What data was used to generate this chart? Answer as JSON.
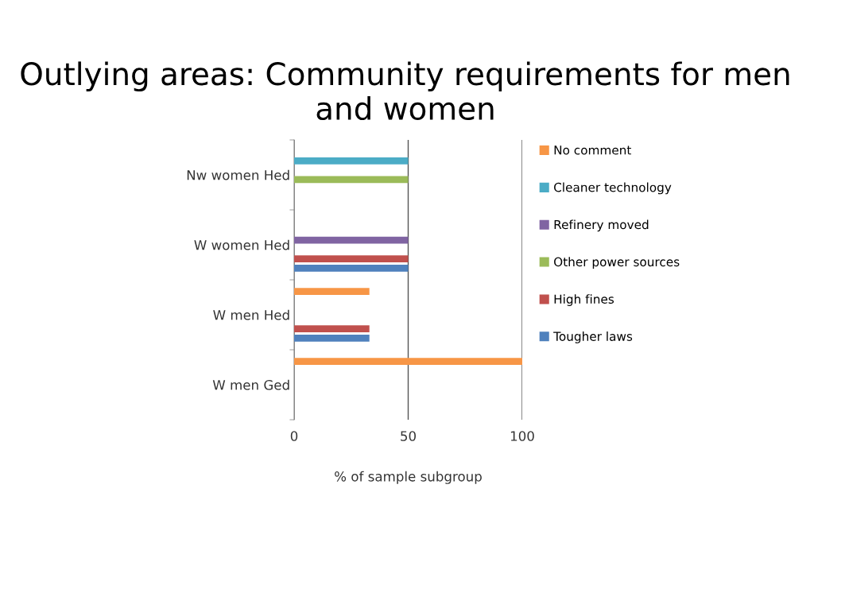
{
  "chart_data": {
    "type": "bar",
    "orientation": "horizontal",
    "title": "Outlying areas: Community requirements for men and women",
    "xlabel": "% of sample subgroup",
    "categories": [
      "Nw women Hed",
      "W women Hed",
      "W men Hed",
      "W men Ged"
    ],
    "series": [
      {
        "name": "Tougher laws",
        "color": "#4f81bd",
        "values": [
          0,
          50,
          33,
          0
        ]
      },
      {
        "name": "High fines",
        "color": "#c0504d",
        "values": [
          0,
          50,
          33,
          0
        ]
      },
      {
        "name": "Other power sources",
        "color": "#9bbb59",
        "values": [
          50,
          0,
          0,
          0
        ]
      },
      {
        "name": "Refinery moved",
        "color": "#8064a2",
        "values": [
          0,
          50,
          0,
          0
        ]
      },
      {
        "name": "Cleaner technology",
        "color": "#4bacc6",
        "values": [
          50,
          0,
          0,
          0
        ]
      },
      {
        "name": "No comment",
        "color": "#f79646",
        "values": [
          0,
          0,
          33,
          100
        ]
      }
    ],
    "xlim": [
      0,
      100
    ],
    "xticks": [
      0,
      50,
      100
    ],
    "grid": "x",
    "legend": "right"
  }
}
